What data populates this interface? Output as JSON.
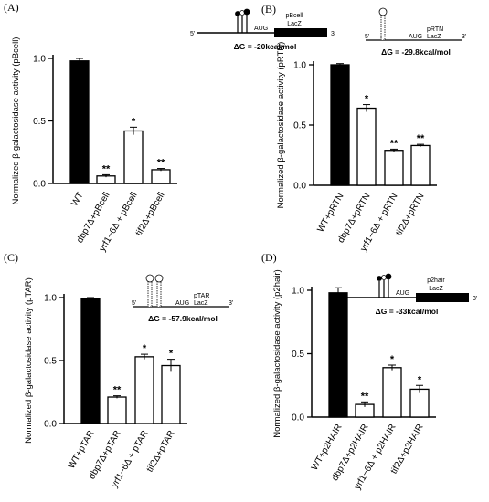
{
  "chart_data": [
    {
      "type": "bar",
      "panel": "(A)",
      "construct": "pBcell",
      "ylabel": "Normalized β-galactosidase activity (pBcell)",
      "ylim": [
        0,
        1.0
      ],
      "yticks": [
        "0.0",
        "0.5",
        "1.0"
      ],
      "categories": [
        "WT",
        "dbp7Δ+pBcell",
        "yrf1−6Δ + pBcell",
        "tif2Δ+pBcell"
      ],
      "values": [
        0.98,
        0.06,
        0.42,
        0.11
      ],
      "errors": [
        0.02,
        0.01,
        0.03,
        0.01
      ],
      "significance": [
        "",
        "**",
        "*",
        "**"
      ],
      "fills": [
        "#000000",
        "#ffffff",
        "#ffffff",
        "#ffffff"
      ],
      "schematic": {
        "five": "5'",
        "aug": "AUG",
        "name": "pBcell",
        "gene": "LacZ",
        "three": "3'",
        "dg": "ΔG = -20kcal/mol"
      }
    },
    {
      "type": "bar",
      "panel": "(B)",
      "construct": "pRTN",
      "ylabel": "Normalized β-galactosidase activity (pRTN)",
      "ylim": [
        0,
        1.0
      ],
      "yticks": [
        "0.0",
        "0.5",
        "1.0"
      ],
      "categories": [
        "WT+pRTN",
        "dbp7Δ+pRTN",
        "yrf1−6Δ + pRTN",
        "tif2Δ+pRTN"
      ],
      "values": [
        1.0,
        0.64,
        0.29,
        0.33
      ],
      "errors": [
        0.01,
        0.03,
        0.01,
        0.01
      ],
      "significance": [
        "",
        "*",
        "**",
        "**"
      ],
      "fills": [
        "#000000",
        "#ffffff",
        "#ffffff",
        "#ffffff"
      ],
      "schematic": {
        "five": "5'",
        "aug": "AUG",
        "name": "pRTN",
        "gene": "LacZ",
        "three": "3'",
        "dg": "ΔG = -29.8kcal/mol"
      }
    },
    {
      "type": "bar",
      "panel": "(C)",
      "construct": "pTAR",
      "ylabel": "Normalized β-galactosidase activity (pTAR)",
      "ylim": [
        0,
        1.0
      ],
      "yticks": [
        "0.0",
        "0.5",
        "1.0"
      ],
      "categories": [
        "WT+pTAR",
        "dbp7Δ+pTAR",
        "yrf1−6Δ + pTAR",
        "tif2Δ+pTAR"
      ],
      "values": [
        0.99,
        0.21,
        0.53,
        0.46
      ],
      "errors": [
        0.01,
        0.01,
        0.02,
        0.05
      ],
      "significance": [
        "",
        "**",
        "*",
        "*"
      ],
      "fills": [
        "#000000",
        "#ffffff",
        "#ffffff",
        "#ffffff"
      ],
      "schematic": {
        "five": "5'",
        "aug": "AUG",
        "name": "pTAR",
        "gene": "LacZ",
        "three": "3'",
        "dg": "ΔG = -57.9kcal/mol"
      }
    },
    {
      "type": "bar",
      "panel": "(D)",
      "construct": "p2hair",
      "ylabel": "Normalized β-galactosidase activity (p2hair)",
      "ylim": [
        0,
        1.0
      ],
      "yticks": [
        "0.0",
        "0.5",
        "1.0"
      ],
      "categories": [
        "WT+p2HAIR",
        "dbp7Δ+p2HAIR",
        "yrf1−6Δ + p2HAIR",
        "tif2Δ+p2HAIR"
      ],
      "values": [
        0.98,
        0.1,
        0.39,
        0.22
      ],
      "errors": [
        0.04,
        0.02,
        0.02,
        0.03
      ],
      "significance": [
        "",
        "**",
        "*",
        "*"
      ],
      "fills": [
        "#000000",
        "#ffffff",
        "#ffffff",
        "#ffffff"
      ],
      "schematic": {
        "five": "5'",
        "aug": "AUG",
        "name": "p2hair",
        "gene": "LacZ",
        "three": "3'",
        "dg": "ΔG = -33kcal/mol"
      }
    }
  ]
}
